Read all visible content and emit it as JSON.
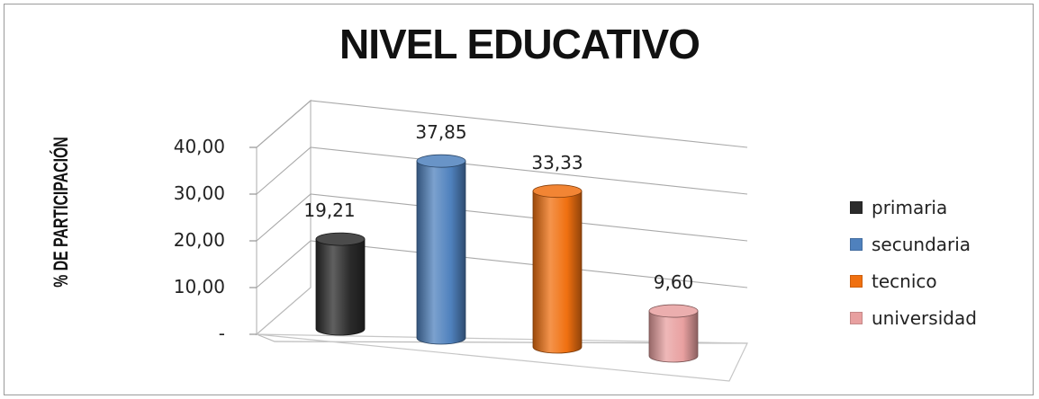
{
  "chart_data": {
    "type": "bar",
    "title": "NIVEL EDUCATIVO",
    "xlabel": "",
    "ylabel": "% DE PARTICIPACIÓN",
    "ylim": [
      0,
      40
    ],
    "y_ticks": [
      "-",
      "10,00",
      "20,00",
      "30,00",
      "40,00"
    ],
    "categories": [
      "primaria",
      "secundaria",
      "tecnico",
      "universidad"
    ],
    "values": [
      19.21,
      37.85,
      33.33,
      9.6
    ],
    "data_labels": [
      "19,21",
      "37,85",
      "33,33",
      "9,60"
    ],
    "colors": [
      "#2b2b2b",
      "#4f81bd",
      "#f07010",
      "#e8a0a0"
    ],
    "grid": true,
    "style": "3d-cylinder",
    "legend_position": "right"
  }
}
